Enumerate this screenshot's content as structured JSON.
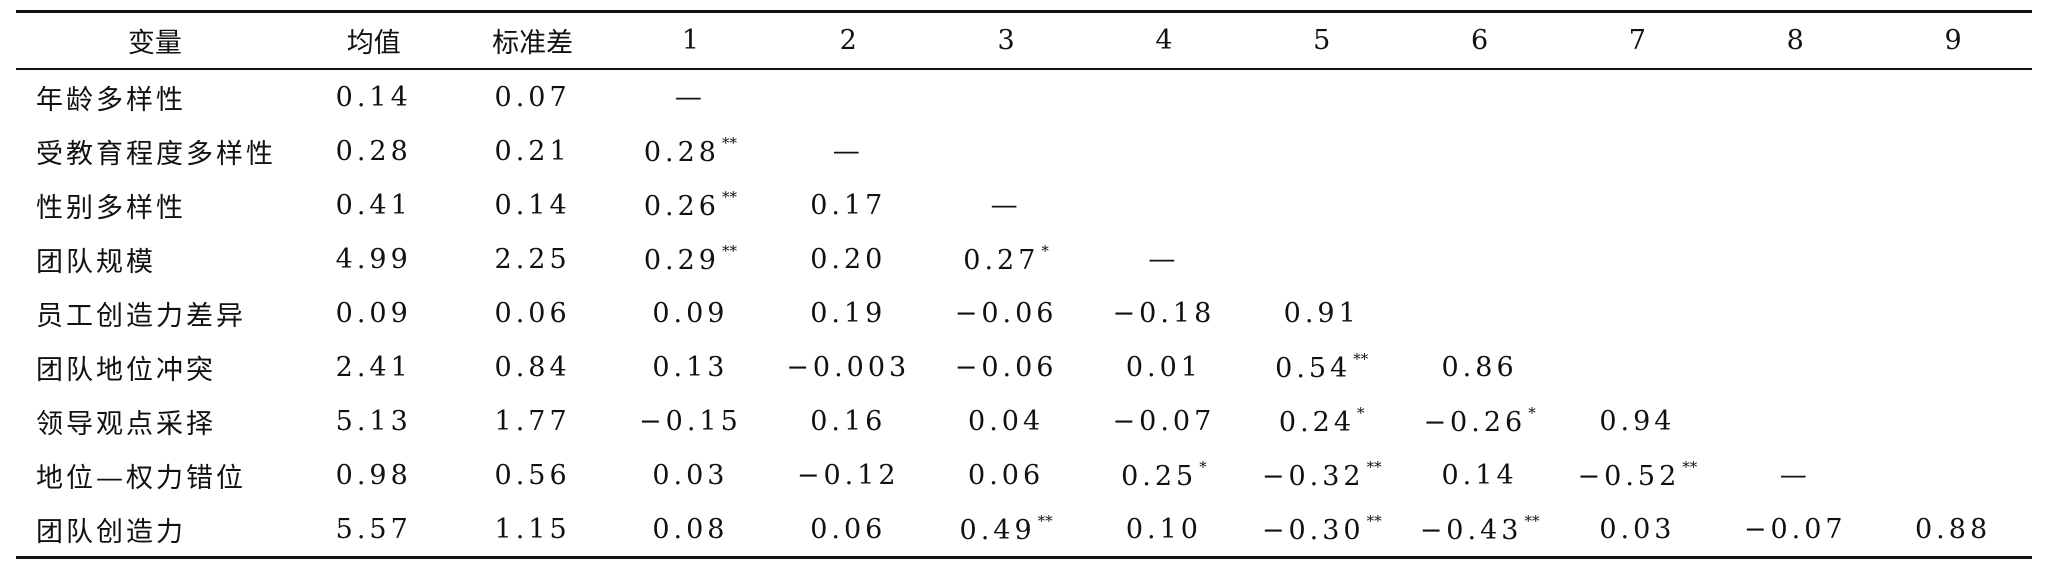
{
  "table": {
    "headers": [
      "变量",
      "均值",
      "标准差",
      "1",
      "2",
      "3",
      "4",
      "5",
      "6",
      "7",
      "8",
      "9"
    ],
    "rows": [
      {
        "variable": "年龄多样性",
        "cells": [
          {
            "v": "0.14"
          },
          {
            "v": "0.07"
          },
          {
            "v": "—"
          },
          {
            "v": ""
          },
          {
            "v": ""
          },
          {
            "v": ""
          },
          {
            "v": ""
          },
          {
            "v": ""
          },
          {
            "v": ""
          },
          {
            "v": ""
          },
          {
            "v": ""
          }
        ]
      },
      {
        "variable": "受教育程度多样性",
        "cells": [
          {
            "v": "0.28"
          },
          {
            "v": "0.21"
          },
          {
            "v": "0.28",
            "s": "**"
          },
          {
            "v": "—"
          },
          {
            "v": ""
          },
          {
            "v": ""
          },
          {
            "v": ""
          },
          {
            "v": ""
          },
          {
            "v": ""
          },
          {
            "v": ""
          },
          {
            "v": ""
          }
        ]
      },
      {
        "variable": "性别多样性",
        "cells": [
          {
            "v": "0.41"
          },
          {
            "v": "0.14"
          },
          {
            "v": "0.26",
            "s": "**"
          },
          {
            "v": "0.17"
          },
          {
            "v": "—"
          },
          {
            "v": ""
          },
          {
            "v": ""
          },
          {
            "v": ""
          },
          {
            "v": ""
          },
          {
            "v": ""
          },
          {
            "v": ""
          }
        ]
      },
      {
        "variable": "团队规模",
        "cells": [
          {
            "v": "4.99"
          },
          {
            "v": "2.25"
          },
          {
            "v": "0.29",
            "s": "**"
          },
          {
            "v": "0.20"
          },
          {
            "v": "0.27",
            "s": "*"
          },
          {
            "v": "—"
          },
          {
            "v": ""
          },
          {
            "v": ""
          },
          {
            "v": ""
          },
          {
            "v": ""
          },
          {
            "v": ""
          }
        ]
      },
      {
        "variable": "员工创造力差异",
        "cells": [
          {
            "v": "0.09"
          },
          {
            "v": "0.06"
          },
          {
            "v": "0.09"
          },
          {
            "v": "0.19"
          },
          {
            "v": "−0.06"
          },
          {
            "v": "−0.18"
          },
          {
            "v": "0.91"
          },
          {
            "v": ""
          },
          {
            "v": ""
          },
          {
            "v": ""
          },
          {
            "v": ""
          }
        ]
      },
      {
        "variable": "团队地位冲突",
        "cells": [
          {
            "v": "2.41"
          },
          {
            "v": "0.84"
          },
          {
            "v": "0.13"
          },
          {
            "v": "−0.003"
          },
          {
            "v": "−0.06"
          },
          {
            "v": "0.01"
          },
          {
            "v": "0.54",
            "s": "**"
          },
          {
            "v": "0.86"
          },
          {
            "v": ""
          },
          {
            "v": ""
          },
          {
            "v": ""
          }
        ]
      },
      {
        "variable": "领导观点采择",
        "cells": [
          {
            "v": "5.13"
          },
          {
            "v": "1.77"
          },
          {
            "v": "−0.15"
          },
          {
            "v": "0.16"
          },
          {
            "v": "0.04"
          },
          {
            "v": "−0.07"
          },
          {
            "v": "0.24",
            "s": "*"
          },
          {
            "v": "−0.26",
            "s": "*"
          },
          {
            "v": "0.94"
          },
          {
            "v": ""
          },
          {
            "v": ""
          }
        ]
      },
      {
        "variable": "地位—权力错位",
        "cells": [
          {
            "v": "0.98"
          },
          {
            "v": "0.56"
          },
          {
            "v": "0.03"
          },
          {
            "v": "−0.12"
          },
          {
            "v": "0.06"
          },
          {
            "v": "0.25",
            "s": "*"
          },
          {
            "v": "−0.32",
            "s": "**"
          },
          {
            "v": "0.14"
          },
          {
            "v": "−0.52",
            "s": "**"
          },
          {
            "v": "—"
          },
          {
            "v": ""
          }
        ]
      },
      {
        "variable": "团队创造力",
        "cells": [
          {
            "v": "5.57"
          },
          {
            "v": "1.15"
          },
          {
            "v": "0.08"
          },
          {
            "v": "0.06"
          },
          {
            "v": "0.49",
            "s": "**"
          },
          {
            "v": "0.10"
          },
          {
            "v": "−0.30",
            "s": "**"
          },
          {
            "v": "−0.43",
            "s": "**"
          },
          {
            "v": "0.03"
          },
          {
            "v": "−0.07"
          },
          {
            "v": "0.88"
          }
        ]
      }
    ]
  }
}
